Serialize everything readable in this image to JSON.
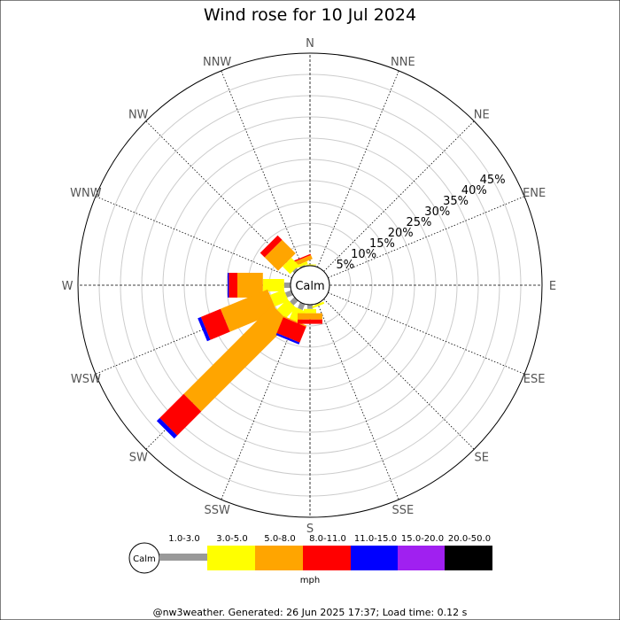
{
  "chart_data": {
    "type": "wind-rose",
    "title": "Wind rose for 10 Jul 2024",
    "directions": [
      "N",
      "NNE",
      "NE",
      "ENE",
      "E",
      "ESE",
      "SE",
      "SSE",
      "S",
      "SSW",
      "SW",
      "WSW",
      "W",
      "WNW",
      "NW",
      "NNW"
    ],
    "radial_ticks": [
      "5%",
      "10%",
      "15%",
      "20%",
      "25%",
      "30%",
      "35%",
      "40%",
      "45%"
    ],
    "radial_max": 50,
    "calm_label": "Calm",
    "unit": "mph",
    "speed_bins": [
      {
        "label": "1.0-3.0",
        "color": "#999999"
      },
      {
        "label": "3.0-5.0",
        "color": "#ffff00"
      },
      {
        "label": "5.0-8.0",
        "color": "#ffa500"
      },
      {
        "label": "8.0-11.0",
        "color": "#ff0000"
      },
      {
        "label": "11.0-15.0",
        "color": "#0000ff"
      },
      {
        "label": "15.0-20.0",
        "color": "#a020f0"
      },
      {
        "label": "20.0-50.0",
        "color": "#000000"
      }
    ],
    "series": [
      {
        "direction": "N",
        "values": [
          0.1,
          0.2,
          0,
          0,
          0,
          0,
          0
        ]
      },
      {
        "direction": "NNW",
        "values": [
          0.3,
          0.6,
          1.0,
          0.3,
          0,
          0,
          0
        ]
      },
      {
        "direction": "NW",
        "values": [
          0.6,
          2.5,
          4.5,
          1.5,
          0,
          0,
          0
        ]
      },
      {
        "direction": "W",
        "values": [
          1.5,
          5.0,
          6.0,
          2.0,
          0.3,
          0,
          0
        ]
      },
      {
        "direction": "WSW",
        "values": [
          1.5,
          3.5,
          12.0,
          5.0,
          0.8,
          0,
          0
        ]
      },
      {
        "direction": "SW",
        "values": [
          1.5,
          3.5,
          29.5,
          8.0,
          1.0,
          0,
          0
        ]
      },
      {
        "direction": "SSW",
        "values": [
          1.5,
          3.0,
          0.3,
          4.0,
          0.5,
          0,
          0
        ]
      },
      {
        "direction": "S",
        "values": [
          1.0,
          1.0,
          1.5,
          1.0,
          0,
          0,
          0
        ]
      },
      {
        "direction": "SSE",
        "values": [
          0.2,
          0.5,
          0,
          0,
          0,
          0,
          0
        ]
      }
    ]
  },
  "footer": "@nw3weather. Generated: 26 Jun 2025 17:37; Load time: 0.12 s"
}
